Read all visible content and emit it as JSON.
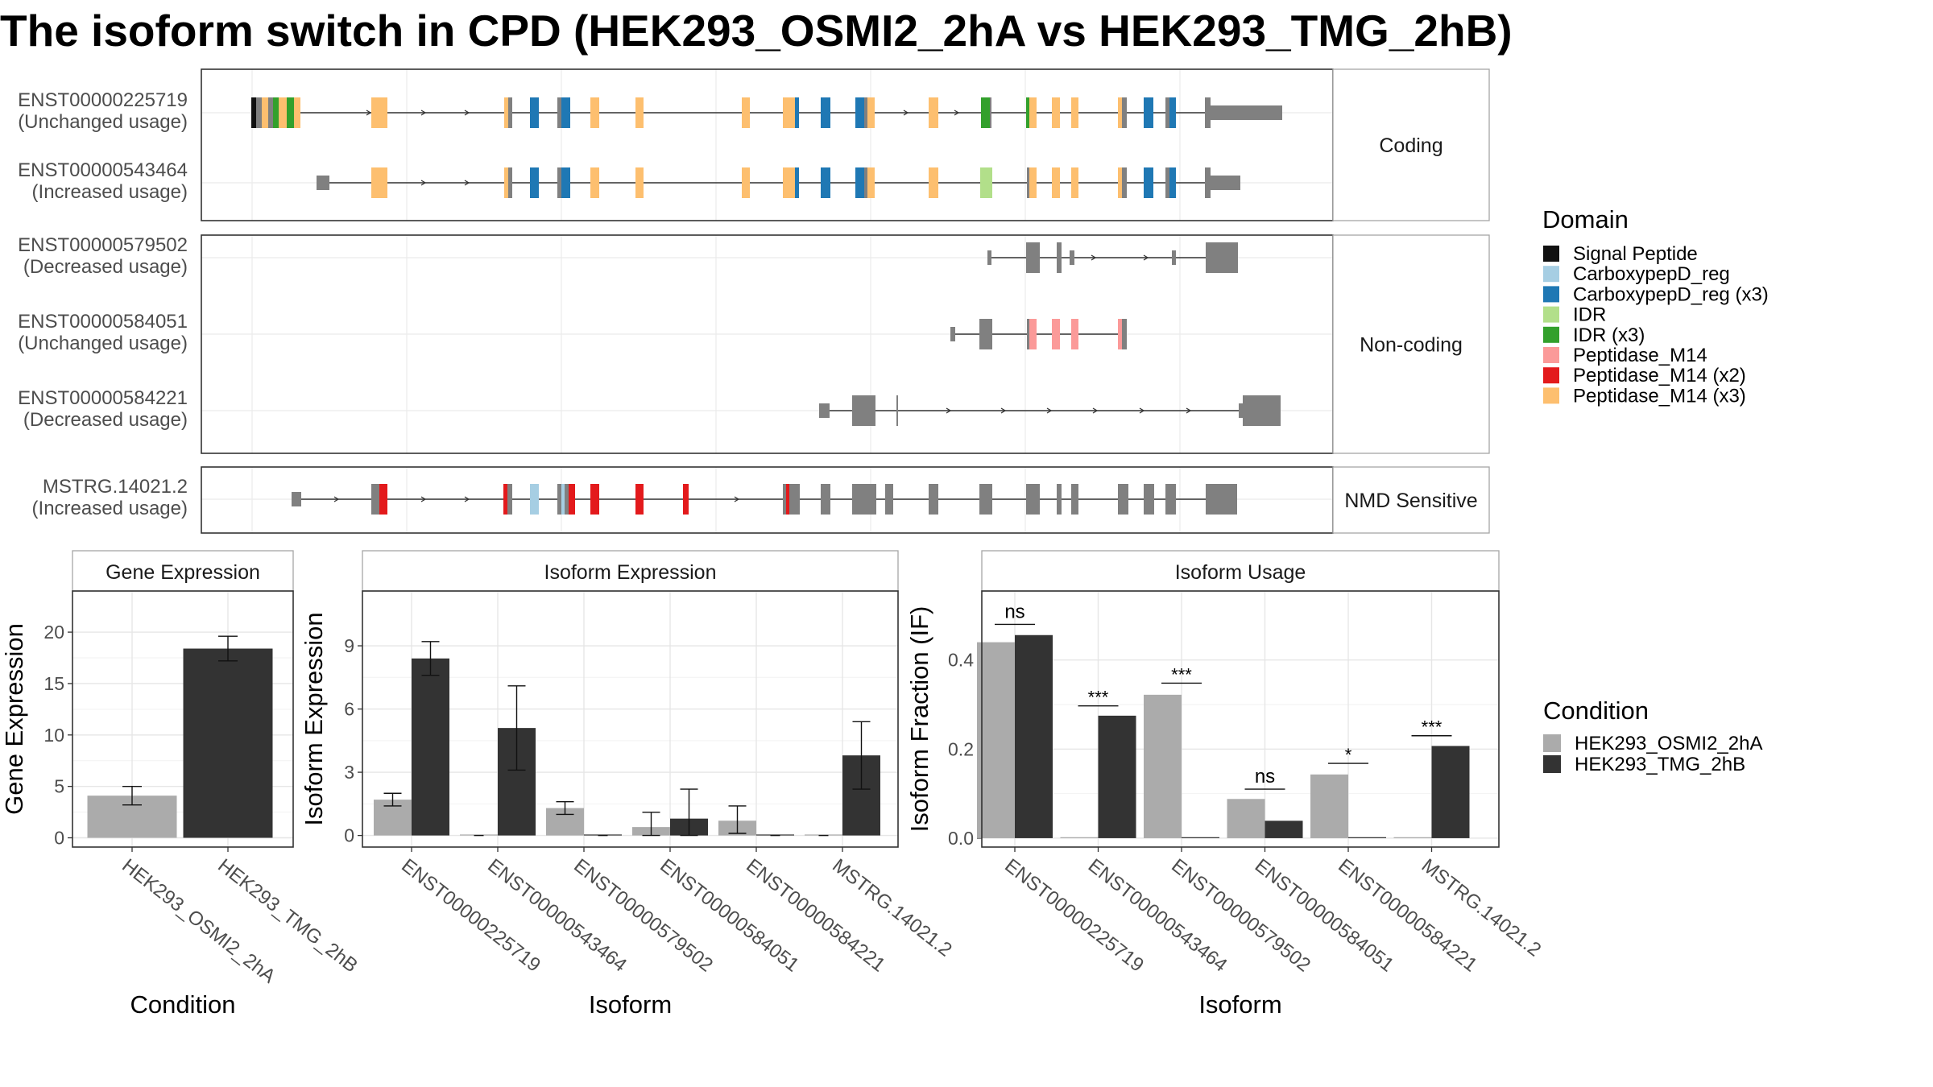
{
  "title": "The isoform switch in CPD (HEK293_OSMI2_2hA vs HEK293_TMG_2hB)",
  "colors": {
    "Signal Peptide": "#111111",
    "CarboxypepD_reg": "#a6cee3",
    "CarboxypepD_reg (x3)": "#1f78b4",
    "IDR": "#b2df8a",
    "IDR (x3)": "#33a02c",
    "Peptidase_M14": "#fb9a99",
    "Peptidase_M14 (x2)": "#e31a1c",
    "Peptidase_M14 (x3)": "#fdbf6f",
    "exon": "#808080",
    "condA": "#ababab",
    "condB": "#333333"
  },
  "structure": {
    "panels": [
      {
        "label": "Coding",
        "isoforms": [
          {
            "id": "ENST00000225719",
            "usage": "(Unchanged usage)"
          },
          {
            "id": "ENST00000543464",
            "usage": "(Increased usage)"
          }
        ]
      },
      {
        "label": "Non-coding",
        "isoforms": [
          {
            "id": "ENST00000579502",
            "usage": "(Decreased usage)"
          },
          {
            "id": "ENST00000584051",
            "usage": "(Unchanged usage)"
          },
          {
            "id": "ENST00000584221",
            "usage": "(Decreased usage)"
          }
        ]
      },
      {
        "label": "NMD Sensitive",
        "isoforms": [
          {
            "id": "MSTRG.14021.2",
            "usage": "(Increased usage)"
          }
        ]
      }
    ]
  },
  "legends": {
    "domain_title": "Domain",
    "domain_items": [
      "Signal Peptide",
      "CarboxypepD_reg",
      "CarboxypepD_reg (x3)",
      "IDR",
      "IDR (x3)",
      "Peptidase_M14",
      "Peptidase_M14 (x2)",
      "Peptidase_M14 (x3)"
    ],
    "condition_title": "Condition",
    "condition_items": [
      "HEK293_OSMI2_2hA",
      "HEK293_TMG_2hB"
    ]
  },
  "chart_data": [
    {
      "type": "bar",
      "title": "Gene Expression",
      "xlabel": "Condition",
      "ylabel": "Gene Expression",
      "categories": [
        "HEK293_OSMI2_2hA",
        "HEK293_TMG_2hB"
      ],
      "values": [
        4.1,
        18.4
      ],
      "err_low": [
        3.2,
        17.2
      ],
      "err_high": [
        5.0,
        19.6
      ],
      "ylim": [
        -0.9,
        24
      ],
      "yticks": [
        0,
        5,
        10,
        15,
        20
      ]
    },
    {
      "type": "bar",
      "title": "Isoform Expression",
      "xlabel": "Isoform",
      "ylabel": "Isoform Expression",
      "categories": [
        "ENST00000225719",
        "ENST00000543464",
        "ENST00000579502",
        "ENST00000584051",
        "ENST00000584221",
        "MSTRG.14021.2"
      ],
      "series": [
        {
          "name": "HEK293_OSMI2_2hA",
          "values": [
            1.7,
            0,
            1.3,
            0.4,
            0.7,
            0
          ],
          "err_low": [
            1.4,
            0,
            1.0,
            0.0,
            0.1,
            0
          ],
          "err_high": [
            2.0,
            0,
            1.6,
            1.1,
            1.4,
            0
          ]
        },
        {
          "name": "HEK293_TMG_2hB",
          "values": [
            8.4,
            5.1,
            0,
            0.8,
            0,
            3.8
          ],
          "err_low": [
            7.6,
            3.1,
            0,
            0.0,
            0,
            2.2
          ],
          "err_high": [
            9.2,
            7.1,
            0,
            2.2,
            0,
            5.4
          ]
        }
      ],
      "ylim": [
        -0.55,
        11.6
      ],
      "yticks": [
        0,
        3,
        6,
        9
      ]
    },
    {
      "type": "bar",
      "title": "Isoform Usage",
      "xlabel": "Isoform",
      "ylabel": "Isoform Fraction (IF)",
      "categories": [
        "ENST00000225719",
        "ENST00000543464",
        "ENST00000579502",
        "ENST00000584051",
        "ENST00000584221",
        "MSTRG.14021.2"
      ],
      "series": [
        {
          "name": "HEK293_OSMI2_2hA",
          "values": [
            0.44,
            0,
            0.322,
            0.088,
            0.143,
            0
          ]
        },
        {
          "name": "HEK293_TMG_2hB",
          "values": [
            0.456,
            0.275,
            0,
            0.039,
            0,
            0.207
          ]
        }
      ],
      "significance": [
        "ns",
        "***",
        "***",
        "ns",
        "*",
        "***"
      ],
      "sig_y": [
        0.48,
        0.297,
        0.348,
        0.11,
        0.168,
        0.23
      ],
      "ylim": [
        -0.02,
        0.555
      ],
      "yticks": [
        0.0,
        0.2,
        0.4
      ],
      "ytick_labels": [
        "0.0",
        "0.2",
        "0.4"
      ]
    }
  ]
}
